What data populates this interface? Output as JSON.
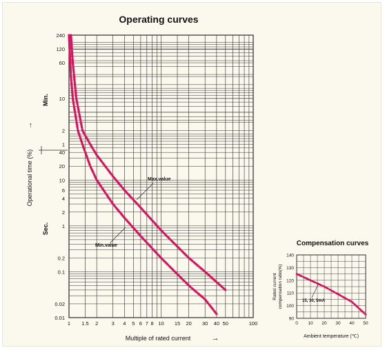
{
  "chart_data": [
    {
      "type": "line",
      "title": "Operating curves",
      "xlabel": "Multiple of rated current",
      "xlabel_arrow": "→",
      "ylabel": "Operational time (%)",
      "ylabel_arrow": "→",
      "x_scale": "log",
      "xlim": [
        1,
        100
      ],
      "x_ticks": [
        "1",
        "1.5",
        "2",
        "3",
        "4",
        "5",
        "6",
        "7",
        "8",
        "10",
        "15",
        "20",
        "30",
        "40",
        "50",
        "100"
      ],
      "y_scale": "log",
      "y_unit_sections": [
        "Min.",
        "Sec."
      ],
      "y_ticks_min": [
        "240",
        "120",
        "60",
        "10",
        "2",
        "1"
      ],
      "y_ticks_sec": [
        "40",
        "20",
        "10",
        "6",
        "4",
        "2",
        "1",
        "0.2",
        "0.1",
        "0.02",
        "0.01"
      ],
      "grid": true,
      "series": [
        {
          "name": "Max.value",
          "points": [
            {
              "x": 1.05,
              "y": "240 min"
            },
            {
              "x": 1.1,
              "y": "60 min"
            },
            {
              "x": 1.2,
              "y": "10 min"
            },
            {
              "x": 1.4,
              "y": "2 min"
            },
            {
              "x": 1.7,
              "y": "1 min"
            },
            {
              "x": 2,
              "y": "35 s"
            },
            {
              "x": 3,
              "y": "12 s"
            },
            {
              "x": 4,
              "y": "6 s"
            },
            {
              "x": 6,
              "y": "2.5 s"
            },
            {
              "x": 10,
              "y": "0.8 s"
            },
            {
              "x": 20,
              "y": "0.2 s"
            },
            {
              "x": 30,
              "y": "0.1 s"
            },
            {
              "x": 50,
              "y": "0.04 s"
            }
          ]
        },
        {
          "name": "Min.value",
          "points": [
            {
              "x": 1,
              "y": "240 min"
            },
            {
              "x": 1.05,
              "y": "30 min"
            },
            {
              "x": 1.1,
              "y": "10 min"
            },
            {
              "x": 1.25,
              "y": "2 min"
            },
            {
              "x": 1.4,
              "y": "1 min"
            },
            {
              "x": 1.7,
              "y": "20 s"
            },
            {
              "x": 2,
              "y": "10 s"
            },
            {
              "x": 3,
              "y": "3 s"
            },
            {
              "x": 4,
              "y": "1.5 s"
            },
            {
              "x": 6,
              "y": "0.6 s"
            },
            {
              "x": 10,
              "y": "0.2 s"
            },
            {
              "x": 20,
              "y": "0.05 s"
            },
            {
              "x": 30,
              "y": "0.025 s"
            },
            {
              "x": 40,
              "y": "0.012 s"
            }
          ]
        }
      ]
    },
    {
      "type": "line",
      "title": "Compensation curves",
      "xlabel": "Ambient temperature (℃)",
      "ylabel": "Rated current compensation ratio(%)",
      "ylabel_lines": [
        "Rated current",
        "compensation ratio(%)"
      ],
      "xlim": [
        0,
        50
      ],
      "ylim": [
        90,
        140
      ],
      "x_ticks": [
        "0",
        "10",
        "20",
        "30",
        "40",
        "50"
      ],
      "y_ticks": [
        "90",
        "100",
        "110",
        "120",
        "130",
        "140"
      ],
      "grid": true,
      "series": [
        {
          "name": "15, 30, 5mA",
          "x": [
            0,
            10,
            20,
            30,
            40,
            50
          ],
          "y": [
            125,
            120,
            115,
            109,
            103,
            93
          ]
        }
      ]
    }
  ],
  "annotations": {
    "max_label": "Max.value",
    "min_label": "Min.value",
    "comp_label": "15, 30, 5mA"
  },
  "colors": {
    "curve": "#d8145e",
    "grid": "#2a2a2a",
    "background": "#fbf8ee"
  }
}
